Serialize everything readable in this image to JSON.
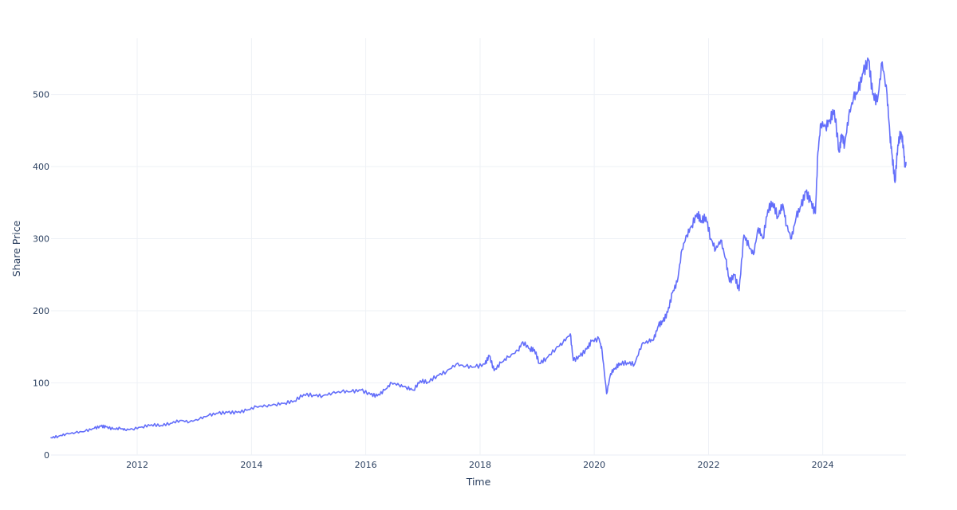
{
  "chart_data": {
    "type": "line",
    "title": "",
    "xlabel": "Time",
    "ylabel": "Share Price",
    "xlim": [
      "2010-06-29",
      "2025-06-16"
    ],
    "ylim": [
      0,
      578
    ],
    "grid": true,
    "legend": "none",
    "x_ticks": [
      {
        "date": "2012-01-01",
        "label": "2012"
      },
      {
        "date": "2014-01-01",
        "label": "2014"
      },
      {
        "date": "2016-01-01",
        "label": "2016"
      },
      {
        "date": "2018-01-01",
        "label": "2018"
      },
      {
        "date": "2020-01-01",
        "label": "2020"
      },
      {
        "date": "2022-01-01",
        "label": "2022"
      },
      {
        "date": "2024-01-01",
        "label": "2024"
      }
    ],
    "y_ticks": [
      {
        "value": 0,
        "label": "0"
      },
      {
        "value": 100,
        "label": "100"
      },
      {
        "value": 200,
        "label": "200"
      },
      {
        "value": 300,
        "label": "300"
      },
      {
        "value": 400,
        "label": "400"
      },
      {
        "value": 500,
        "label": "500"
      }
    ],
    "series": [
      {
        "color": "#636efa",
        "points": [
          [
            "2010-06-29",
            24
          ],
          [
            "2010-08-15",
            26
          ],
          [
            "2010-10-01",
            29
          ],
          [
            "2010-12-01",
            31
          ],
          [
            "2011-02-01",
            33
          ],
          [
            "2011-04-01",
            37
          ],
          [
            "2011-05-15",
            40
          ],
          [
            "2011-06-15",
            39
          ],
          [
            "2011-08-01",
            36
          ],
          [
            "2011-09-15",
            37
          ],
          [
            "2011-10-15",
            35
          ],
          [
            "2011-12-01",
            36
          ],
          [
            "2012-02-01",
            39
          ],
          [
            "2012-04-01",
            42
          ],
          [
            "2012-06-01",
            41
          ],
          [
            "2012-08-01",
            44
          ],
          [
            "2012-10-01",
            48
          ],
          [
            "2012-12-01",
            46
          ],
          [
            "2013-02-01",
            50
          ],
          [
            "2013-04-01",
            55
          ],
          [
            "2013-06-01",
            58
          ],
          [
            "2013-08-01",
            59
          ],
          [
            "2013-10-01",
            59
          ],
          [
            "2013-12-01",
            62
          ],
          [
            "2014-02-01",
            67
          ],
          [
            "2014-04-01",
            68
          ],
          [
            "2014-06-01",
            70
          ],
          [
            "2014-08-01",
            72
          ],
          [
            "2014-10-01",
            75
          ],
          [
            "2014-12-01",
            84
          ],
          [
            "2015-02-01",
            83
          ],
          [
            "2015-04-01",
            82
          ],
          [
            "2015-06-01",
            86
          ],
          [
            "2015-08-01",
            88
          ],
          [
            "2015-10-01",
            88
          ],
          [
            "2015-12-01",
            90
          ],
          [
            "2016-02-01",
            84
          ],
          [
            "2016-03-15",
            82
          ],
          [
            "2016-05-01",
            90
          ],
          [
            "2016-06-15",
            100
          ],
          [
            "2016-08-01",
            97
          ],
          [
            "2016-09-15",
            94
          ],
          [
            "2016-11-01",
            90
          ],
          [
            "2016-12-15",
            103
          ],
          [
            "2017-02-01",
            101
          ],
          [
            "2017-04-01",
            110
          ],
          [
            "2017-06-01",
            116
          ],
          [
            "2017-08-01",
            126
          ],
          [
            "2017-10-01",
            123
          ],
          [
            "2017-12-01",
            122
          ],
          [
            "2018-02-01",
            126
          ],
          [
            "2018-03-01",
            138
          ],
          [
            "2018-04-01",
            117
          ],
          [
            "2018-05-15",
            128
          ],
          [
            "2018-07-01",
            136
          ],
          [
            "2018-09-01",
            145
          ],
          [
            "2018-10-01",
            157
          ],
          [
            "2018-11-15",
            147
          ],
          [
            "2018-12-15",
            146
          ],
          [
            "2019-01-15",
            127
          ],
          [
            "2019-03-01",
            134
          ],
          [
            "2019-05-01",
            148
          ],
          [
            "2019-06-15",
            156
          ],
          [
            "2019-08-01",
            168
          ],
          [
            "2019-08-20",
            131
          ],
          [
            "2019-10-01",
            137
          ],
          [
            "2019-11-15",
            147
          ],
          [
            "2019-12-15",
            158
          ],
          [
            "2020-02-01",
            161
          ],
          [
            "2020-02-20",
            145
          ],
          [
            "2020-03-20",
            85
          ],
          [
            "2020-04-15",
            113
          ],
          [
            "2020-05-15",
            121
          ],
          [
            "2020-06-15",
            127
          ],
          [
            "2020-08-01",
            128
          ],
          [
            "2020-09-15",
            126
          ],
          [
            "2020-11-01",
            154
          ],
          [
            "2020-12-15",
            158
          ],
          [
            "2021-01-15",
            160
          ],
          [
            "2021-02-15",
            180
          ],
          [
            "2021-03-15",
            185
          ],
          [
            "2021-04-15",
            198
          ],
          [
            "2021-05-15",
            225
          ],
          [
            "2021-06-15",
            240
          ],
          [
            "2021-07-15",
            285
          ],
          [
            "2021-08-15",
            305
          ],
          [
            "2021-09-15",
            318
          ],
          [
            "2021-10-20",
            335
          ],
          [
            "2021-11-15",
            325
          ],
          [
            "2021-12-15",
            330
          ],
          [
            "2022-01-15",
            300
          ],
          [
            "2022-02-15",
            285
          ],
          [
            "2022-03-20",
            298
          ],
          [
            "2022-04-20",
            272
          ],
          [
            "2022-05-15",
            240
          ],
          [
            "2022-06-15",
            250
          ],
          [
            "2022-07-15",
            228
          ],
          [
            "2022-08-15",
            305
          ],
          [
            "2022-09-15",
            290
          ],
          [
            "2022-10-15",
            278
          ],
          [
            "2022-11-15",
            315
          ],
          [
            "2022-12-15",
            300
          ],
          [
            "2023-01-15",
            340
          ],
          [
            "2023-02-15",
            350
          ],
          [
            "2023-03-20",
            330
          ],
          [
            "2023-04-20",
            348
          ],
          [
            "2023-05-15",
            318
          ],
          [
            "2023-06-15",
            300
          ],
          [
            "2023-07-15",
            330
          ],
          [
            "2023-08-15",
            345
          ],
          [
            "2023-09-15",
            365
          ],
          [
            "2023-10-15",
            352
          ],
          [
            "2023-11-15",
            335
          ],
          [
            "2023-12-01",
            420
          ],
          [
            "2023-12-20",
            460
          ],
          [
            "2024-01-20",
            455
          ],
          [
            "2024-02-15",
            465
          ],
          [
            "2024-03-15",
            478
          ],
          [
            "2024-04-15",
            420
          ],
          [
            "2024-05-01",
            445
          ],
          [
            "2024-05-20",
            430
          ],
          [
            "2024-06-15",
            470
          ],
          [
            "2024-07-15",
            495
          ],
          [
            "2024-08-15",
            505
          ],
          [
            "2024-09-15",
            530
          ],
          [
            "2024-10-20",
            548
          ],
          [
            "2024-11-15",
            500
          ],
          [
            "2024-12-15",
            490
          ],
          [
            "2025-01-15",
            545
          ],
          [
            "2025-02-15",
            500
          ],
          [
            "2025-03-05",
            445
          ],
          [
            "2025-03-20",
            415
          ],
          [
            "2025-04-07",
            378
          ],
          [
            "2025-04-25",
            430
          ],
          [
            "2025-05-15",
            448
          ],
          [
            "2025-05-30",
            430
          ],
          [
            "2025-06-10",
            400
          ],
          [
            "2025-06-16",
            406
          ]
        ]
      }
    ]
  }
}
